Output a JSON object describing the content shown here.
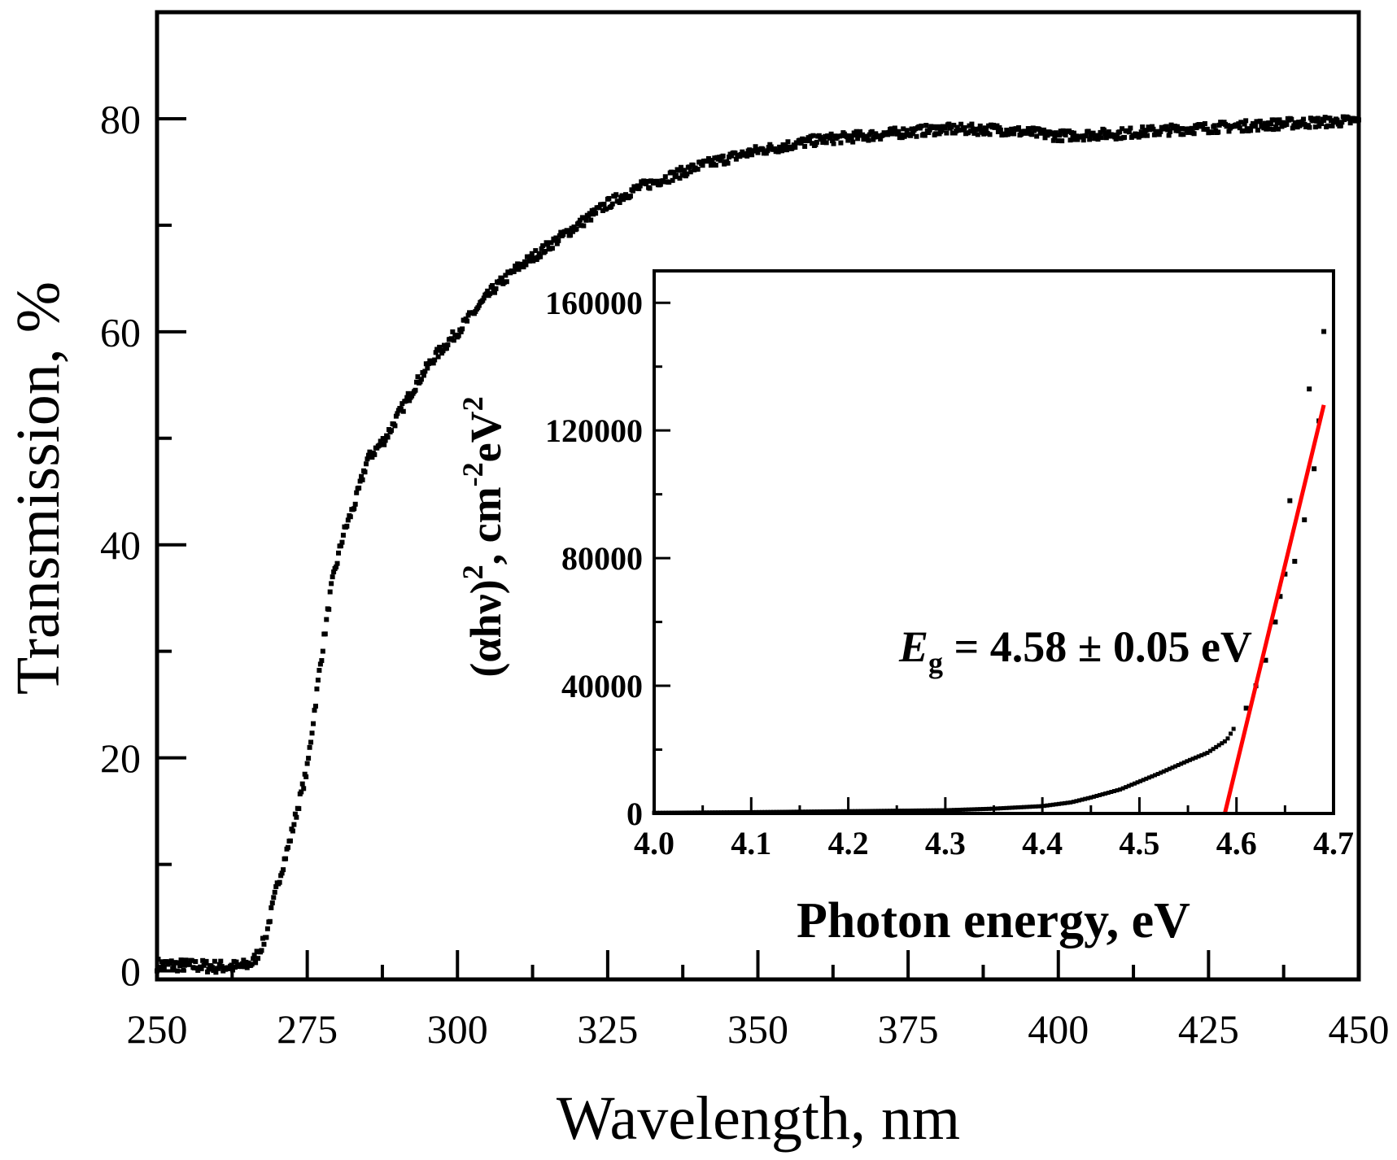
{
  "chart_data": [
    {
      "type": "scatter",
      "xlabel": "Wavelength, nm",
      "ylabel": "Transmission, %",
      "xlim": [
        250,
        450
      ],
      "ylim": [
        -0.8,
        90
      ],
      "xticks": [
        "250",
        "275",
        "300",
        "325",
        "350",
        "375",
        "400",
        "425",
        "450"
      ],
      "xtick_values": [
        250,
        275,
        300,
        325,
        350,
        375,
        400,
        425,
        450
      ],
      "yticks": [
        "0",
        "20",
        "40",
        "60",
        "80"
      ],
      "ytick_values": [
        0,
        20,
        40,
        60,
        80
      ],
      "grid": false,
      "marker_color": "#000000",
      "x": [
        250,
        255,
        260,
        264,
        266,
        268,
        270,
        272,
        275,
        277,
        279,
        281,
        283,
        285,
        288,
        290,
        293,
        296,
        300,
        303,
        306,
        310,
        315,
        320,
        325,
        330,
        335,
        340,
        345,
        350,
        355,
        360,
        370,
        380,
        390,
        400,
        410,
        420,
        430,
        440,
        450
      ],
      "y": [
        0.6,
        0.5,
        0.4,
        0.4,
        0.8,
        3,
        8,
        12,
        19,
        28,
        36,
        41,
        44,
        48,
        50,
        52,
        55,
        57.5,
        60,
        62,
        64,
        66,
        68,
        70,
        72,
        73.5,
        74.5,
        75.5,
        76.3,
        77,
        77.5,
        78,
        78.5,
        79,
        79,
        78.4,
        78.6,
        79,
        79.3,
        79.6,
        79.8
      ]
    },
    {
      "type": "scatter",
      "inset": true,
      "xlabel": "Photon energy, eV",
      "ylabel_parts": [
        "(αhν)",
        "2",
        ", cm",
        "-2",
        "eV",
        "2"
      ],
      "xlim": [
        4.0,
        4.7
      ],
      "ylim": [
        0,
        170000
      ],
      "xticks": [
        "4.0",
        "4.1",
        "4.2",
        "4.3",
        "4.4",
        "4.5",
        "4.6",
        "4.7"
      ],
      "xtick_values": [
        4.0,
        4.1,
        4.2,
        4.3,
        4.4,
        4.5,
        4.6,
        4.7
      ],
      "yticks": [
        "0",
        "40000",
        "80000",
        "120000",
        "160000"
      ],
      "ytick_values": [
        0,
        40000,
        80000,
        120000,
        160000
      ],
      "grid": false,
      "marker_color": "#000000",
      "x": [
        4.0,
        4.1,
        4.2,
        4.3,
        4.35,
        4.4,
        4.43,
        4.45,
        4.48,
        4.5,
        4.52,
        4.55,
        4.57,
        4.59,
        4.6,
        4.61,
        4.62,
        4.63,
        4.64,
        4.645,
        4.65,
        4.655,
        4.66,
        4.67,
        4.675,
        4.68,
        4.685,
        4.69
      ],
      "y": [
        200,
        400,
        700,
        1000,
        1500,
        2300,
        3500,
        5000,
        7500,
        10000,
        12500,
        16500,
        19000,
        23000,
        28000,
        33000,
        40000,
        48000,
        60000,
        68000,
        75000,
        98000,
        79000,
        92000,
        133000,
        108000,
        123000,
        151000
      ],
      "fit_line": {
        "color": "#ff0000",
        "x": [
          4.588,
          4.69
        ],
        "y": [
          0,
          128000
        ]
      },
      "annotation": {
        "symbol": "E",
        "subscript": "g",
        "text": " = 4.58 ± 0.05 eV"
      }
    }
  ]
}
